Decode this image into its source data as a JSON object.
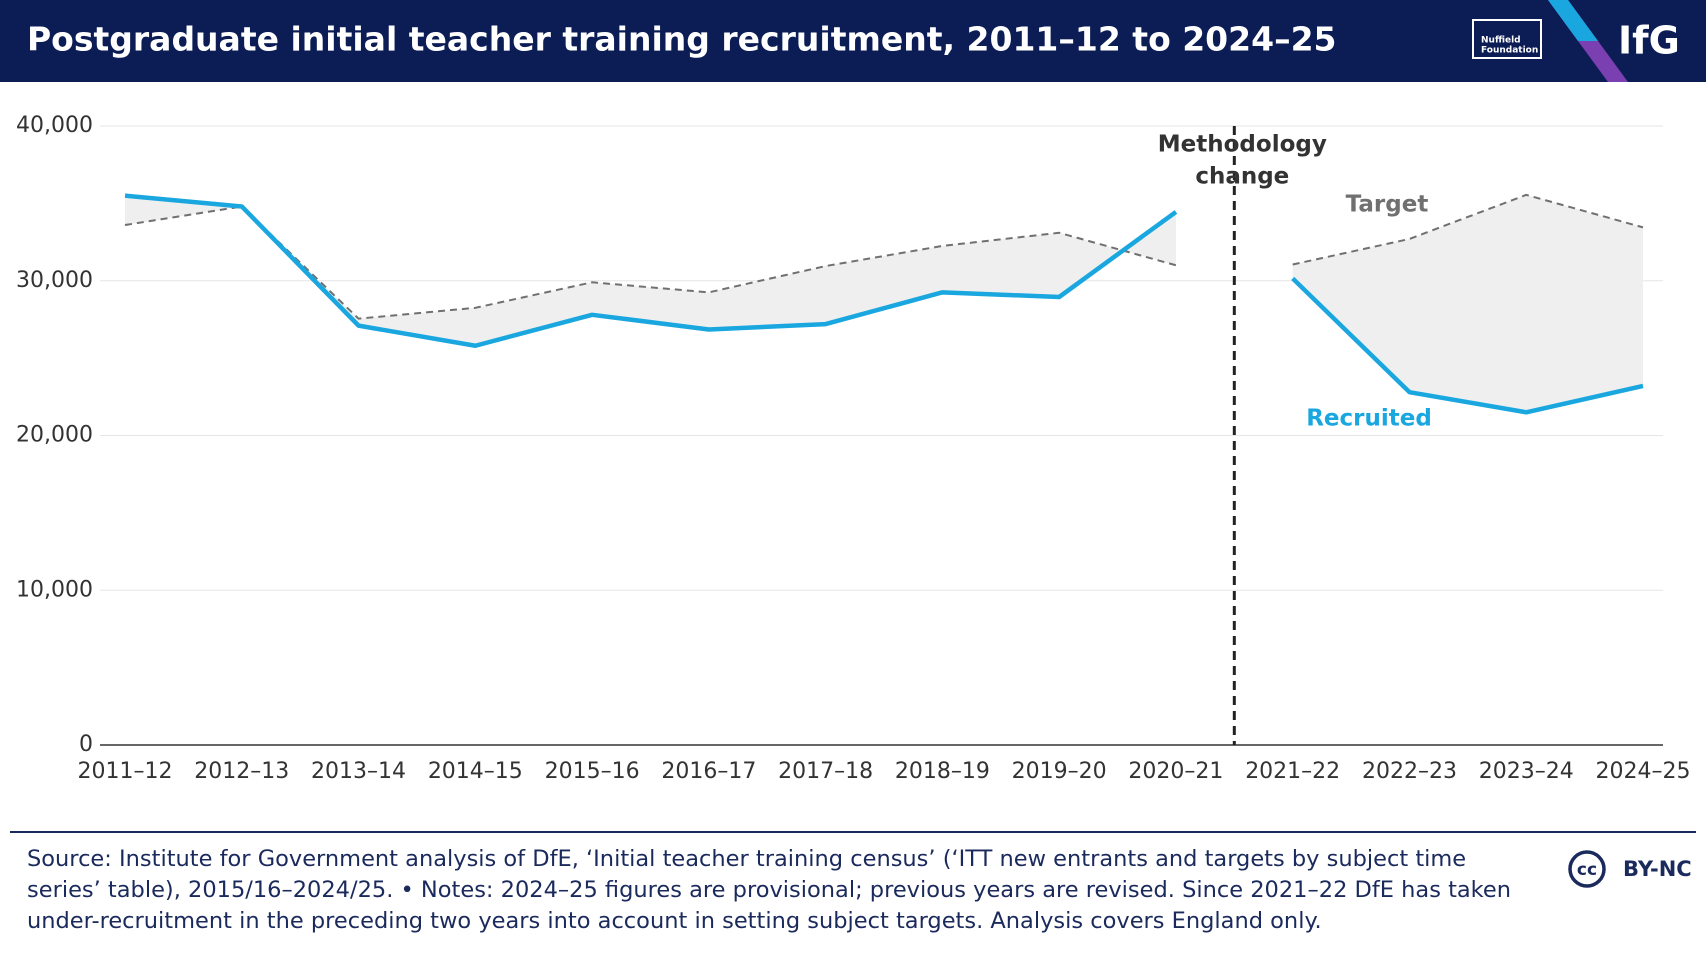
{
  "header": {
    "title": "Postgraduate initial teacher training recruitment, 2011–12 to 2024–25",
    "logo_nuffield": [
      "Nuffield",
      "Foundation"
    ],
    "logo_ifg": "IfG"
  },
  "chart_data": {
    "type": "line",
    "categories": [
      "2011–12",
      "2012–13",
      "2013–14",
      "2014–15",
      "2015–16",
      "2016–17",
      "2017–18",
      "2018–19",
      "2019–20",
      "2020–21",
      "2021–22",
      "2022–23",
      "2023–24",
      "2024–25"
    ],
    "series": [
      {
        "name": "Recruited",
        "color": "#1aa7e0",
        "style": "solid",
        "values": [
          35500,
          34800,
          27100,
          25800,
          27800,
          26850,
          27200,
          29250,
          28950,
          34450,
          30150,
          22800,
          21500,
          23200
        ]
      },
      {
        "name": "Target",
        "color": "#707070",
        "style": "dashed",
        "values": [
          33600,
          34800,
          27550,
          28250,
          29900,
          29250,
          30950,
          32250,
          33100,
          31000,
          31050,
          32700,
          35550,
          33450
        ]
      }
    ],
    "shade_between": true,
    "shade_color": "#efefef",
    "annotation": {
      "text": [
        "Methodology",
        "change"
      ],
      "x": 9.5
    },
    "ylim": [
      0,
      40000
    ],
    "yticks": [
      0,
      {
        "value": 10000,
        "label": "10,000"
      },
      {
        "value": 20000,
        "label": "20,000"
      },
      {
        "value": 30000,
        "label": "30,000"
      },
      {
        "value": 40000,
        "label": "40,000"
      }
    ],
    "grid": true
  },
  "footer": {
    "source": "Source: Institute for Government analysis of DfE, ‘Initial teacher training census’ (‘ITT new entrants and targets by subject time series’ table), 2015/16–2024/25. • Notes: 2024–25 figures are provisional; previous years are revised. Since 2021–22 DfE has taken under-recruitment in the preceding two years into account in setting subject targets. Analysis covers England only.",
    "cc": "cc",
    "license": "BY-NC"
  }
}
